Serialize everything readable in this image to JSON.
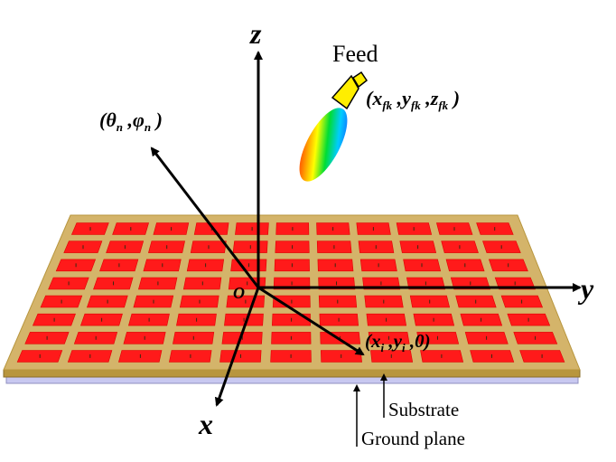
{
  "labels": {
    "feed": "Feed",
    "axis_z": "z",
    "axis_y": "y",
    "axis_x": "x",
    "origin": "O",
    "direction": {
      "open": "(",
      "theta": "θ",
      "theta_sub": "n",
      "comma": " ,",
      "phi": "φ",
      "phi_sub": "n",
      "close": " )"
    },
    "feed_pos": {
      "open": "(",
      "x": "x",
      "x_sub": "fk",
      "sep1": " ,",
      "y": "y",
      "y_sub": "fk",
      "sep2": " ,",
      "z": "z",
      "z_sub": "fk",
      "close": " )"
    },
    "element_pos": {
      "open": "(",
      "x": "x",
      "x_sub": "i",
      "sep1": " ,",
      "y": "y",
      "y_sub": "i",
      "sep2": " ,",
      "zero": "0",
      "close": ")"
    },
    "substrate": "Substrate",
    "ground_plane": "Ground plane"
  },
  "array": {
    "rows": 8,
    "cols": 11
  },
  "colors": {
    "substrate": "#d4b46a",
    "substrate_edge": "#b8963e",
    "patch": "#ff1a1a",
    "patch_edge": "#e00000",
    "ground": "#c8c8f0",
    "feed_horn": "#ffee00",
    "axis": "#000000"
  }
}
